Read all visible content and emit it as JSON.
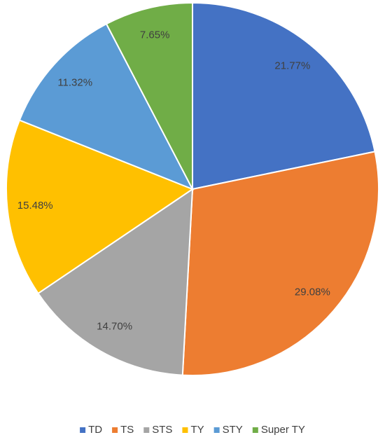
{
  "chart_data": {
    "type": "pie",
    "categories": [
      "TD",
      "TS",
      "STS",
      "TY",
      "STY",
      "Super TY"
    ],
    "values": [
      21.77,
      29.08,
      14.7,
      15.48,
      11.32,
      7.65
    ],
    "value_labels": [
      "21.77%",
      "29.08%",
      "14.70%",
      "15.48%",
      "11.32%",
      "7.65%"
    ],
    "colors": [
      "#4472c4",
      "#ed7d31",
      "#a5a5a5",
      "#ffc000",
      "#5b9bd5",
      "#70ad47"
    ],
    "legend": "bottom"
  }
}
